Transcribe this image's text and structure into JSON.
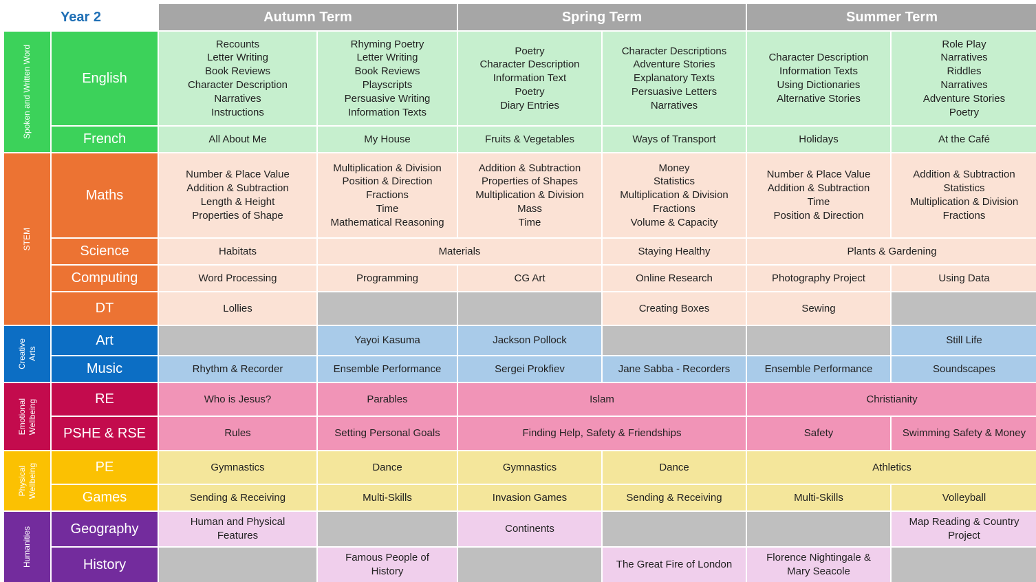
{
  "header": {
    "year": "Year 2",
    "autumn": "Autumn Term",
    "spring": "Spring Term",
    "summer": "Summer Term"
  },
  "groups": {
    "spoken": "Spoken and Written Word",
    "stem": "STEM",
    "creative": "Creative\nArts",
    "emotional": "Emotional\nWellbeing",
    "physical": "Physical\nWellbeing",
    "humanities": "Humanities"
  },
  "subjects": {
    "english": "English",
    "french": "French",
    "maths": "Maths",
    "science": "Science",
    "computing": "Computing",
    "dt": "DT",
    "art": "Art",
    "music": "Music",
    "re": "RE",
    "pshe": "PSHE & RSE",
    "pe": "PE",
    "games": "Games",
    "geography": "Geography",
    "history": "History"
  },
  "cells": {
    "english": {
      "a1": "Recounts\nLetter Writing\nBook Reviews\nCharacter Description\nNarratives\nInstructions",
      "a2": "Rhyming Poetry\nLetter Writing\nBook Reviews\nPlayscripts\nPersuasive Writing\nInformation Texts",
      "sp1": "Poetry\nCharacter Description\nInformation Text\nPoetry\nDiary Entries",
      "sp2": "Character Descriptions\nAdventure Stories\nExplanatory Texts\nPersuasive Letters\nNarratives",
      "su1": "Character Description\nInformation Texts\nUsing Dictionaries\nAlternative Stories",
      "su2": "Role Play\nNarratives\nRiddles\nNarratives\nAdventure Stories\nPoetry"
    },
    "french": {
      "a1": "All About Me",
      "a2": "My House",
      "sp1": "Fruits & Vegetables",
      "sp2": "Ways of Transport",
      "su1": "Holidays",
      "su2": "At the Café"
    },
    "maths": {
      "a1": "Number & Place Value\nAddition & Subtraction\nLength & Height\nProperties of Shape",
      "a2": "Multiplication & Division\nPosition & Direction\nFractions\nTime\nMathematical Reasoning",
      "sp1": "Addition & Subtraction\nProperties of Shapes\nMultiplication & Division\nMass\nTime",
      "sp2": "Money\nStatistics\nMultiplication & Division\nFractions\nVolume & Capacity",
      "su1": "Number & Place Value\nAddition & Subtraction\nTime\nPosition & Direction",
      "su2": "Addition & Subtraction\nStatistics\nMultiplication & Division\nFractions"
    },
    "science": {
      "a1": "Habitats",
      "a2sp1": "Materials",
      "sp2": "Staying Healthy",
      "su": "Plants & Gardening"
    },
    "computing": {
      "a1": "Word Processing",
      "a2": "Programming",
      "sp1": "CG Art",
      "sp2": "Online Research",
      "su1": "Photography Project",
      "su2": "Using Data"
    },
    "dt": {
      "a1": "Lollies",
      "sp2": "Creating Boxes",
      "su1": "Sewing"
    },
    "art": {
      "a2": "Yayoi Kasuma",
      "sp1": "Jackson Pollock",
      "su2": "Still Life"
    },
    "music": {
      "a1": "Rhythm & Recorder",
      "a2": "Ensemble Performance",
      "sp1": "Sergei Prokfiev",
      "sp2": "Jane Sabba - Recorders",
      "su1": "Ensemble Performance",
      "su2": "Soundscapes"
    },
    "re": {
      "a1": "Who is Jesus?",
      "a2": "Parables",
      "sp": "Islam",
      "su": "Christianity"
    },
    "pshe": {
      "a1": "Rules",
      "a2": "Setting Personal Goals",
      "sp": "Finding Help, Safety & Friendships",
      "su1": "Safety",
      "su2": "Swimming Safety & Money"
    },
    "pe": {
      "a1": "Gymnastics",
      "a2": "Dance",
      "sp1": "Gymnastics",
      "sp2": "Dance",
      "su": "Athletics"
    },
    "games": {
      "a1": "Sending & Receiving",
      "a2": "Multi-Skills",
      "sp1": "Invasion Games",
      "sp2": "Sending & Receiving",
      "su1": "Multi-Skills",
      "su2": "Volleyball"
    },
    "geography": {
      "a1": "Human and Physical\nFeatures",
      "sp1": "Continents",
      "su2": "Map Reading & Country\nProject"
    },
    "history": {
      "a2": "Famous People of\nHistory",
      "sp2": "The Great Fire of London",
      "su1": "Florence Nightingale &\nMary Seacole"
    }
  },
  "colors": {
    "header_grey": "#a6a6a6",
    "year_text": "#1f6fb5",
    "spoken_group": "#3cd25a",
    "stem_group": "#ec7333",
    "creative_group": "#0c6ec4",
    "emotional_group": "#c30b4d",
    "physical_group": "#fbc102",
    "humanities_group": "#732c9d"
  }
}
